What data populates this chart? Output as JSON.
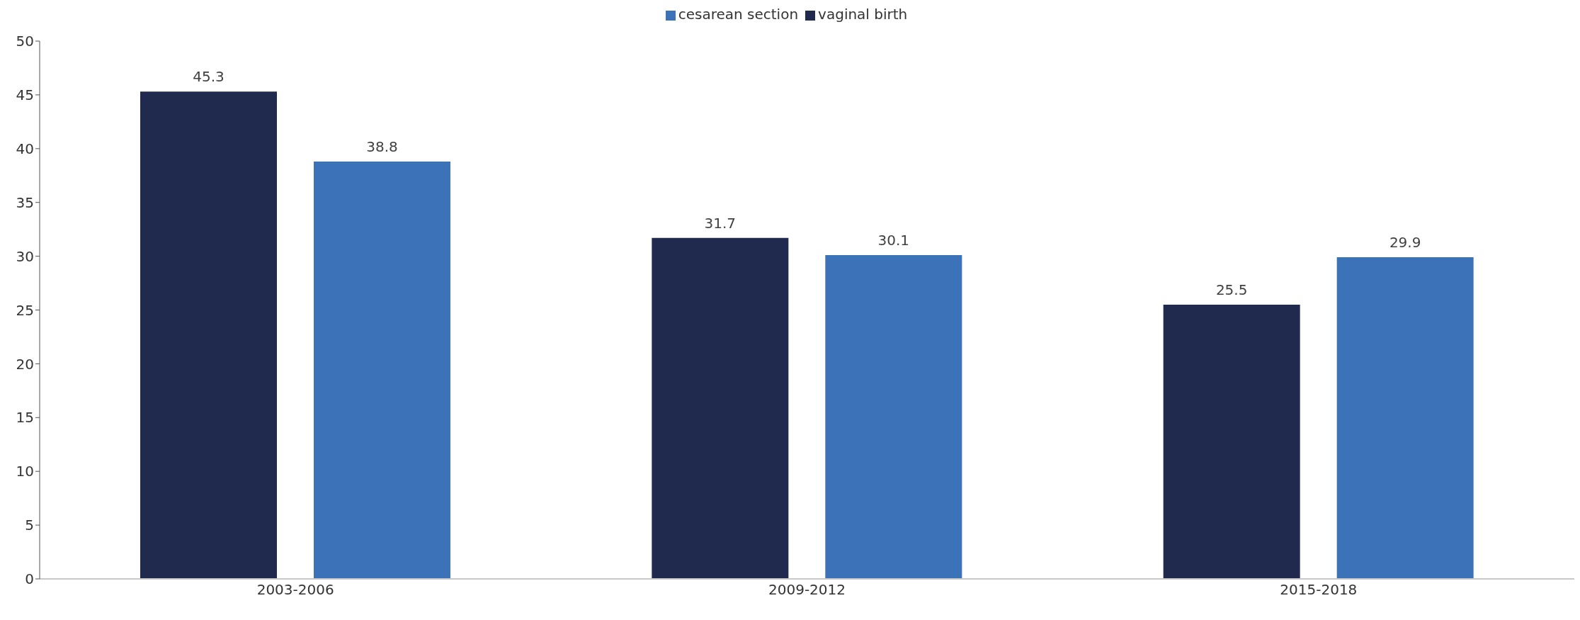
{
  "chart_data": {
    "type": "bar",
    "categories": [
      "2003-2006",
      "2009-2012",
      "2015-2018"
    ],
    "series": [
      {
        "name": "vaginal birth",
        "color": "#202a4e",
        "values": [
          45.3,
          31.7,
          25.5
        ]
      },
      {
        "name": "cesarean section",
        "color": "#3c72b8",
        "values": [
          38.8,
          30.1,
          29.9
        ]
      }
    ],
    "ylim": [
      0,
      50
    ],
    "yticks": [
      0,
      5,
      10,
      15,
      20,
      25,
      30,
      35,
      40,
      45,
      50
    ],
    "grid": false,
    "legend": "top",
    "data_labels": true
  }
}
